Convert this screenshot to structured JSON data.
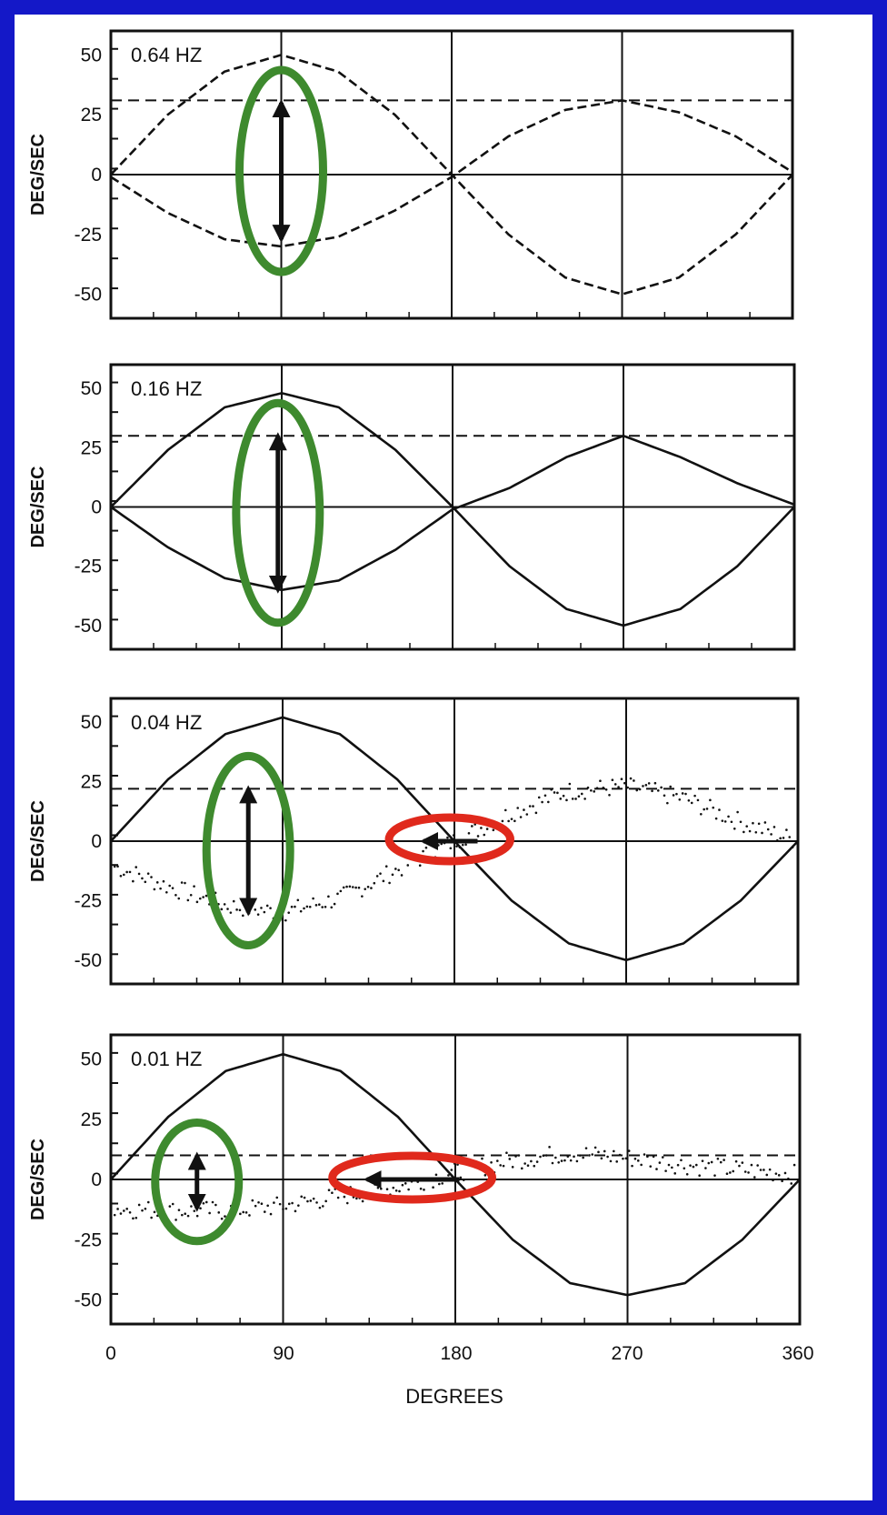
{
  "colors": {
    "background_border": "#1418c8",
    "panel_background": "#ffffff",
    "ink": "#111111",
    "green_ellipse": "#3e8a2e",
    "red_ellipse": "#e0291c"
  },
  "x_axis": {
    "label": "DEGREES",
    "tick_labels": [
      "0",
      "90",
      "180",
      "270",
      "360"
    ],
    "range": [
      0,
      360
    ]
  },
  "chart_data": [
    {
      "type": "line",
      "title": "0.64 HZ",
      "ylabel": "DEG/SEC",
      "ylim": [
        -60,
        60
      ],
      "yticks": [
        50,
        25,
        0,
        -25,
        -50
      ],
      "ytick_labels": [
        "50",
        "25",
        "0",
        "-25",
        "-50"
      ],
      "x": [
        0,
        30,
        60,
        90,
        120,
        150,
        180,
        210,
        240,
        270,
        300,
        330,
        360
      ],
      "series": [
        {
          "style": "stimulus",
          "values": [
            0,
            25,
            43,
            50,
            43,
            25,
            0,
            -25,
            -43,
            -50,
            -43,
            -25,
            0
          ]
        },
        {
          "style": "response",
          "values": [
            -1,
            -16,
            -27,
            -30,
            -26,
            -15,
            -1,
            16,
            27,
            31,
            26,
            16,
            1
          ]
        },
        {
          "style": "reference-dashed",
          "values": [
            31,
            31,
            31,
            31,
            31,
            31,
            31,
            31,
            31,
            31,
            31,
            31,
            31
          ]
        }
      ],
      "annotations": [
        {
          "type": "green-ellipse",
          "x": 90,
          "arrow_from": 30,
          "arrow_to": -27
        }
      ]
    },
    {
      "type": "line",
      "title": "0.16 HZ",
      "ylabel": "DEG/SEC",
      "ylim": [
        -60,
        60
      ],
      "yticks": [
        50,
        25,
        0,
        -25,
        -50
      ],
      "ytick_labels": [
        "50",
        "25",
        "0",
        "-25",
        "-50"
      ],
      "x": [
        0,
        30,
        60,
        90,
        120,
        150,
        180,
        210,
        240,
        270,
        300,
        330,
        360
      ],
      "series": [
        {
          "style": "stimulus",
          "values": [
            0,
            24,
            42,
            48,
            42,
            24,
            0,
            -25,
            -43,
            -50,
            -43,
            -25,
            0
          ]
        },
        {
          "style": "response",
          "values": [
            0,
            -17,
            -30,
            -35,
            -31,
            -18,
            -1,
            8,
            21,
            30,
            21,
            10,
            1
          ]
        },
        {
          "style": "reference-dashed",
          "values": [
            30,
            30,
            30,
            30,
            30,
            30,
            30,
            30,
            30,
            30,
            30,
            30,
            30
          ]
        }
      ],
      "annotations": [
        {
          "type": "green-ellipse",
          "x": 88,
          "arrow_from": 30,
          "arrow_to": -35
        }
      ]
    },
    {
      "type": "line",
      "title": "0.04 HZ",
      "ylabel": "DEG/SEC",
      "ylim": [
        -60,
        60
      ],
      "yticks": [
        50,
        25,
        0,
        -25,
        -50
      ],
      "ytick_labels": [
        "50",
        "25",
        "0",
        "-25",
        "-50"
      ],
      "x": [
        0,
        30,
        60,
        90,
        120,
        150,
        180,
        210,
        240,
        270,
        300,
        330,
        360
      ],
      "series": [
        {
          "style": "stimulus",
          "values": [
            0,
            26,
            45,
            52,
            45,
            26,
            0,
            -25,
            -43,
            -50,
            -43,
            -25,
            0
          ]
        },
        {
          "style": "response-scatter",
          "values": [
            -10,
            -19,
            -27,
            -30,
            -24,
            -12,
            0,
            12,
            21,
            23,
            18,
            8,
            0
          ]
        },
        {
          "style": "reference-dashed",
          "values": [
            22,
            22,
            22,
            22,
            22,
            22,
            22,
            22,
            22,
            22,
            22,
            22,
            22
          ]
        }
      ],
      "annotations": [
        {
          "type": "green-ellipse",
          "x": 72,
          "arrow_from": 22,
          "arrow_to": -30
        },
        {
          "type": "red-ellipse",
          "x_from": 160,
          "x_to": 195,
          "y": 0
        }
      ]
    },
    {
      "type": "line",
      "title": "0.01 HZ",
      "ylabel": "DEG/SEC",
      "ylim": [
        -60,
        60
      ],
      "yticks": [
        50,
        25,
        0,
        -25,
        -50
      ],
      "ytick_labels": [
        "50",
        "25",
        "0",
        "-25",
        "-50"
      ],
      "x": [
        0,
        30,
        60,
        90,
        120,
        150,
        180,
        210,
        240,
        270,
        300,
        330,
        360
      ],
      "series": [
        {
          "style": "stimulus",
          "values": [
            0,
            26,
            45,
            52,
            45,
            26,
            0,
            -25,
            -43,
            -48,
            -43,
            -25,
            0
          ]
        },
        {
          "style": "response-scatter",
          "values": [
            -12,
            -13,
            -13,
            -11,
            -7,
            -3,
            3,
            8,
            11,
            9,
            6,
            4,
            2
          ]
        },
        {
          "style": "reference-dashed",
          "values": [
            10,
            10,
            10,
            10,
            10,
            10,
            10,
            10,
            10,
            10,
            10,
            10,
            10
          ]
        }
      ],
      "annotations": [
        {
          "type": "green-ellipse",
          "x": 45,
          "arrow_from": 10,
          "arrow_to": -12
        },
        {
          "type": "red-ellipse",
          "x_from": 130,
          "x_to": 185,
          "y": 0
        }
      ]
    }
  ]
}
